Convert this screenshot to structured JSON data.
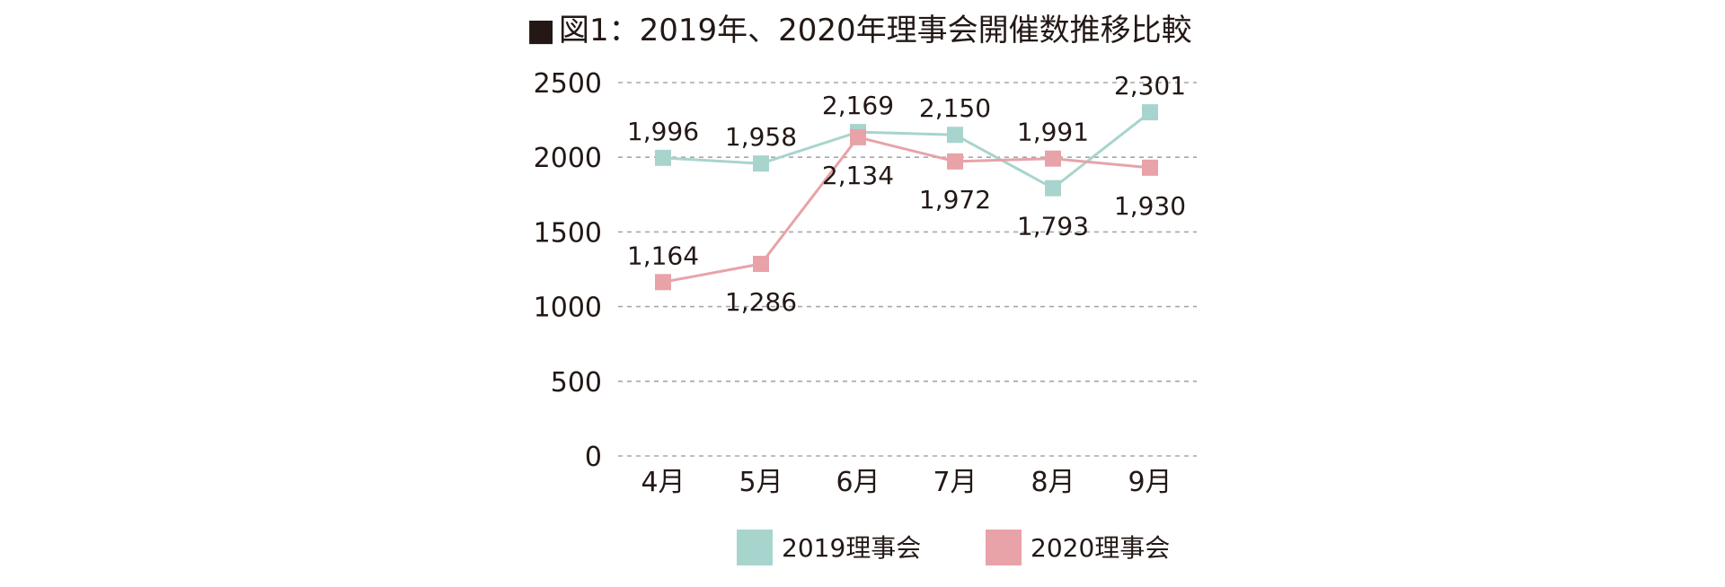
{
  "chart_data": {
    "type": "line",
    "title_marker": "■",
    "title": "図1：2019年、2020年理事会開催数推移比較",
    "categories": [
      "4月",
      "5月",
      "6月",
      "7月",
      "8月",
      "9月"
    ],
    "yticks": [
      "0",
      "500",
      "1000",
      "1500",
      "2000",
      "2500"
    ],
    "ylim": [
      0,
      2500
    ],
    "grid": true,
    "legend_position": "bottom-center",
    "series": [
      {
        "name": "2019理事会",
        "color": "#a8d4ce",
        "values": [
          1996,
          1958,
          2169,
          2150,
          1793,
          2301
        ],
        "labels": [
          "1,996",
          "1,958",
          "2,169",
          "2,150",
          "1,793",
          "2,301"
        ],
        "label_placement": [
          "above",
          "above",
          "above",
          "above",
          "below",
          "above"
        ]
      },
      {
        "name": "2020理事会",
        "color": "#e7a3a8",
        "values": [
          1164,
          1286,
          2134,
          1972,
          1991,
          1930
        ],
        "labels": [
          "1,164",
          "1,286",
          "2,134",
          "1,972",
          "1,991",
          "1,930"
        ],
        "label_placement": [
          "above",
          "below",
          "below",
          "below",
          "above",
          "below"
        ]
      }
    ]
  }
}
